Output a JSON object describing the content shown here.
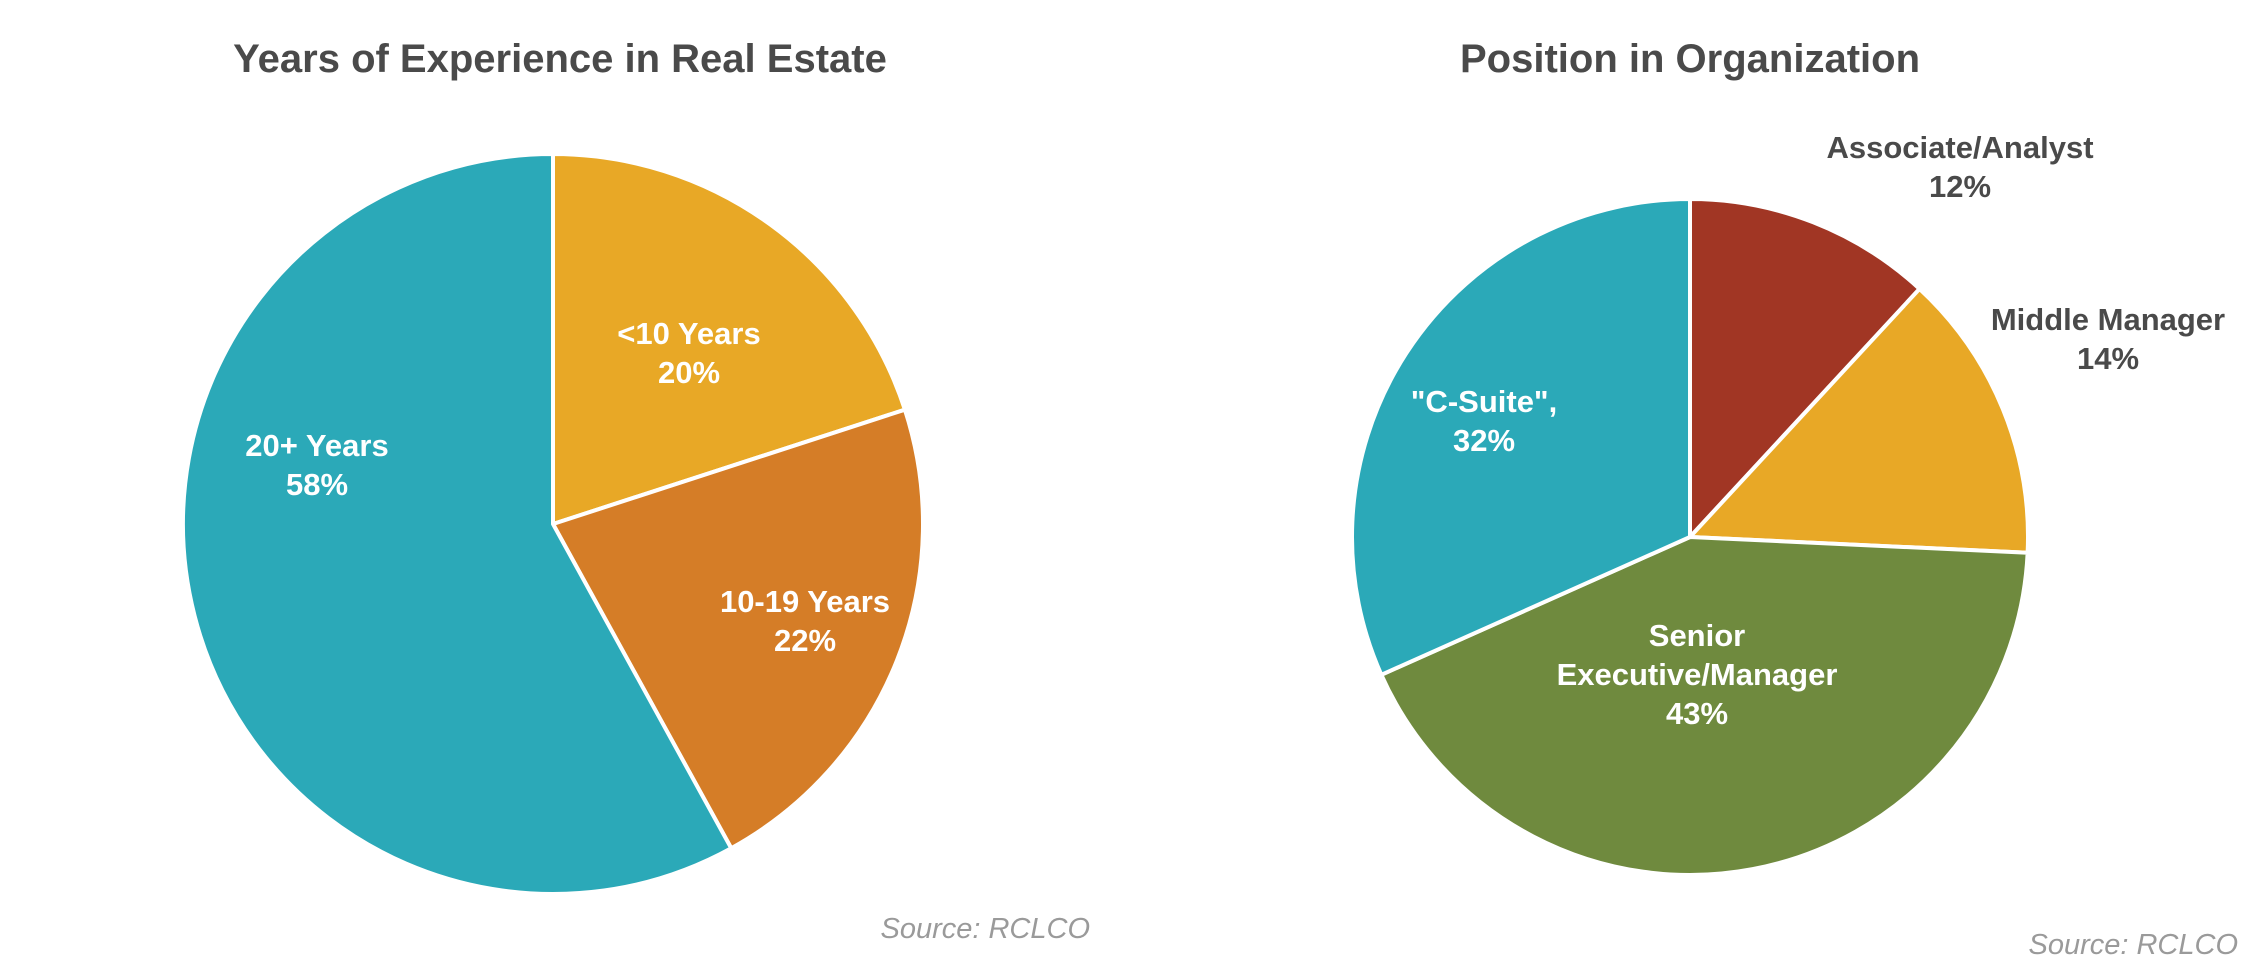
{
  "chart_data": [
    {
      "type": "pie",
      "title": "Years of Experience in Real Estate",
      "source": "Source: RCLCO",
      "slices": [
        {
          "label": "<10 Years",
          "percent_label": "20%",
          "value": 20,
          "color": "#E8A826"
        },
        {
          "label": "10-19 Years",
          "percent_label": "22%",
          "value": 22,
          "color": "#D57D27"
        },
        {
          "label": "20+ Years",
          "percent_label": "58%",
          "value": 58,
          "color": "#2BA9B8"
        }
      ]
    },
    {
      "type": "pie",
      "title": "Position in Organization",
      "source": "Source: RCLCO",
      "slices": [
        {
          "label": "Associate/Analyst",
          "percent_label": "12%",
          "value": 12,
          "color": "#A13624"
        },
        {
          "label": "Middle Manager",
          "percent_label": "14%",
          "value": 14,
          "color": "#E8A826"
        },
        {
          "label": "Senior Executive/Manager",
          "percent_label": "43%",
          "value": 43,
          "color": "#6F8A3E"
        },
        {
          "label": "\"C-Suite\",",
          "percent_label": "32%",
          "value": 32,
          "color": "#2BA9B8"
        }
      ]
    }
  ]
}
